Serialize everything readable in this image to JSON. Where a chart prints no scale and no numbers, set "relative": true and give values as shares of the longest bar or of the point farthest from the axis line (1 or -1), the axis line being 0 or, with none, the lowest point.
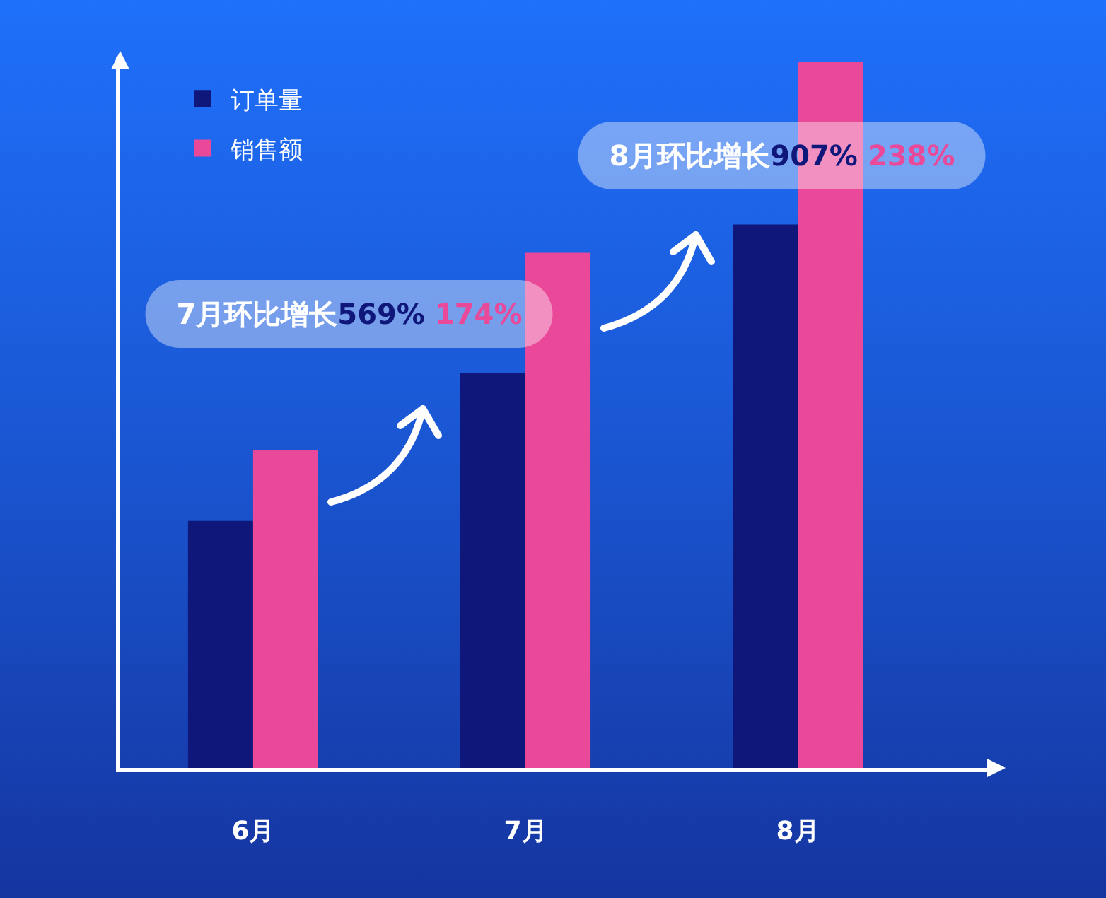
{
  "chart_data": {
    "type": "bar",
    "relative": true,
    "categories": [
      "6月",
      "7月",
      "8月"
    ],
    "series": [
      {
        "name": "订单量",
        "color": "#10177a",
        "values": [
          0.35,
          0.56,
          0.77
        ]
      },
      {
        "name": "销售额",
        "color": "#ea4898",
        "values": [
          0.45,
          0.73,
          1
        ]
      }
    ],
    "legend": "top left",
    "grid": false,
    "annotations": [
      "7月环比增长",
      "569%",
      "174%",
      "8月环比增长",
      "907%",
      "238%"
    ]
  }
}
